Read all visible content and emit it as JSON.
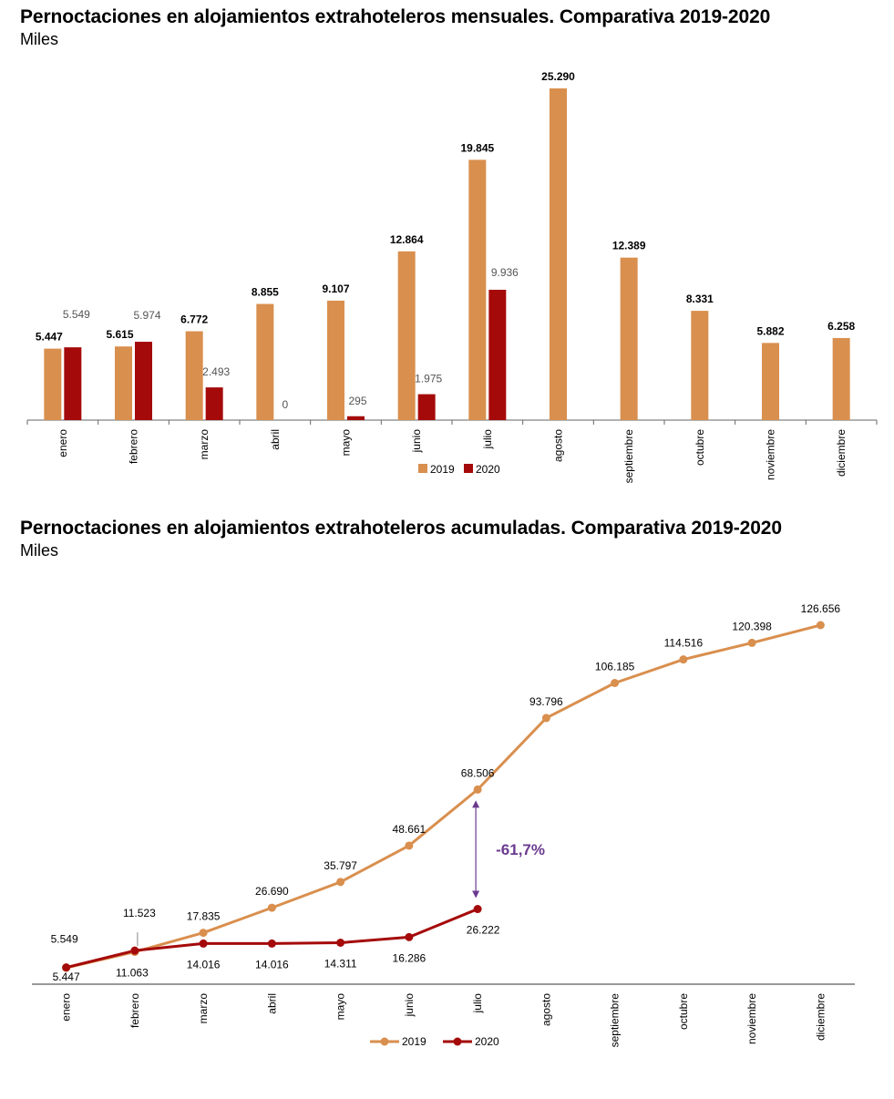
{
  "colors": {
    "s2019": "#D98F4E",
    "s2020": "#A50A0A",
    "axis": "#666666",
    "annotation": "#6B3A8F"
  },
  "chart1": {
    "title": "Pernoctaciones en alojamientos extrahoteleros mensuales. Comparativa 2019-2020",
    "subtitle": "Miles"
  },
  "chart2": {
    "title": "Pernoctaciones en alojamientos extrahoteleros acumuladas. Comparativa 2019-2020",
    "subtitle": "Miles",
    "annotation": "-61,7%"
  },
  "chart_data": [
    {
      "type": "bar",
      "title": "Pernoctaciones en alojamientos extrahoteleros mensuales. Comparativa 2019-2020",
      "subtitle": "Miles",
      "categories": [
        "enero",
        "febrero",
        "marzo",
        "abril",
        "mayo",
        "junio",
        "julio",
        "agosto",
        "septiembre",
        "octubre",
        "noviembre",
        "diciembre"
      ],
      "series": [
        {
          "name": "2019",
          "values": [
            5447,
            5615,
            6772,
            8855,
            9107,
            12864,
            19845,
            25290,
            12389,
            8331,
            5882,
            6258
          ],
          "labels": [
            "5.447",
            "5.615",
            "6.772",
            "8.855",
            "9.107",
            "12.864",
            "19.845",
            "25.290",
            "12.389",
            "8.331",
            "5.882",
            "6.258"
          ]
        },
        {
          "name": "2020",
          "values": [
            5549,
            5974,
            2493,
            0,
            295,
            1975,
            9936,
            null,
            null,
            null,
            null,
            null
          ],
          "labels": [
            "5.549",
            "5.974",
            "2.493",
            "0",
            "295",
            "1.975",
            "9.936",
            null,
            null,
            null,
            null,
            null
          ]
        }
      ],
      "ylim": [
        0,
        25290
      ],
      "legend": "bottom",
      "grid": false
    },
    {
      "type": "line",
      "title": "Pernoctaciones en alojamientos extrahoteleros acumuladas. Comparativa 2019-2020",
      "subtitle": "Miles",
      "categories": [
        "enero",
        "febrero",
        "marzo",
        "abril",
        "mayo",
        "junio",
        "julio",
        "agosto",
        "septiembre",
        "octubre",
        "noviembre",
        "diciembre"
      ],
      "series": [
        {
          "name": "2019",
          "values": [
            5447,
            11063,
            17835,
            26690,
            35797,
            48661,
            68506,
            93796,
            106185,
            114516,
            120398,
            126656
          ],
          "labels": [
            "5.447",
            "11.063",
            "17.835",
            "26.690",
            "35.797",
            "48.661",
            "68.506",
            "93.796",
            "106.185",
            "114.516",
            "120.398",
            "126.656"
          ]
        },
        {
          "name": "2020",
          "values": [
            5549,
            11523,
            14016,
            14016,
            14311,
            16286,
            26222,
            null,
            null,
            null,
            null,
            null
          ],
          "labels": [
            "5.549",
            "11.523",
            "14.016",
            "14.016",
            "14.311",
            "16.286",
            "26.222",
            null,
            null,
            null,
            null,
            null
          ]
        }
      ],
      "annotations": [
        {
          "text": "-61,7%",
          "between": "julio"
        }
      ],
      "legend": "bottom",
      "grid": false
    }
  ]
}
